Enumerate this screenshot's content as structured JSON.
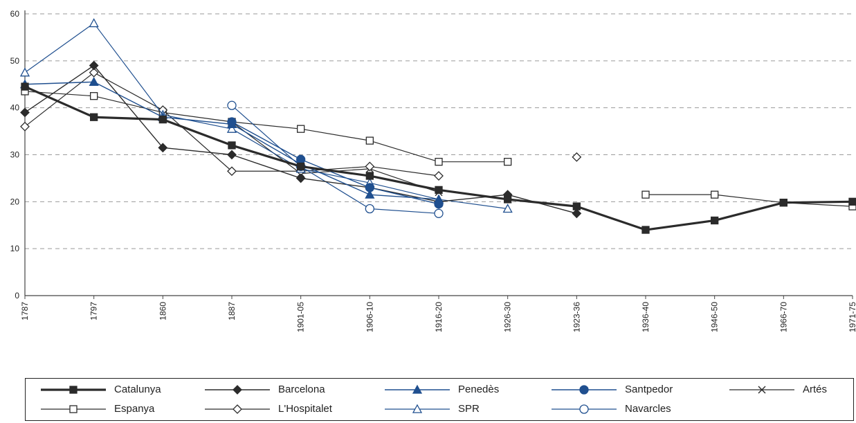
{
  "chart_data": {
    "type": "line",
    "categories": [
      "1787",
      "1797",
      "1860",
      "1887",
      "1901-05",
      "1906-10",
      "1916-20",
      "1926-30",
      "1923-36",
      "1936-40",
      "1946-50",
      "1966-70",
      "1971-75"
    ],
    "ylim": [
      0,
      60
    ],
    "yticks": [
      0,
      10,
      20,
      30,
      40,
      50,
      60
    ],
    "grid": "horizontal dashed",
    "legend_position": "bottom",
    "series": [
      {
        "name": "Catalunya",
        "color": "#2b2b2b",
        "marker": "filled-square",
        "width": 3.2,
        "values": [
          44.5,
          38,
          37.5,
          32,
          27.5,
          25.5,
          22.5,
          20.5,
          19,
          14,
          16,
          19.8,
          20
        ]
      },
      {
        "name": "Barcelona",
        "color": "#2b2b2b",
        "marker": "filled-diamond",
        "width": 1.4,
        "values": [
          39,
          49,
          31.5,
          30,
          25,
          23,
          20,
          21.5,
          17.5,
          null,
          null,
          null,
          null
        ]
      },
      {
        "name": "Penedès",
        "color": "#1f4f8f",
        "marker": "filled-triangle",
        "width": 1.4,
        "values": [
          45,
          45.5,
          38,
          36.5,
          28,
          21.5,
          20.5,
          null,
          null,
          null,
          null,
          null,
          null
        ]
      },
      {
        "name": "Santpedor",
        "color": "#1f4f8f",
        "marker": "filled-circle",
        "width": 1.4,
        "values": [
          null,
          null,
          null,
          37,
          29,
          23,
          19.5,
          null,
          null,
          null,
          null,
          null,
          null
        ]
      },
      {
        "name": "Artés",
        "color": "#2b2b2b",
        "marker": "cross",
        "width": 1.2,
        "values": [
          null,
          null,
          null,
          37,
          26,
          27,
          22,
          null,
          null,
          null,
          null,
          null,
          null
        ]
      },
      {
        "name": "Espanya",
        "color": "#2b2b2b",
        "marker": "open-square",
        "width": 1.2,
        "values": [
          43.5,
          42.5,
          39,
          37,
          35.5,
          33,
          28.5,
          28.5,
          null,
          21.5,
          21.5,
          19.8,
          19
        ]
      },
      {
        "name": "L'Hospitalet",
        "color": "#2b2b2b",
        "marker": "open-diamond",
        "width": 1.2,
        "values": [
          36,
          47.5,
          39.5,
          26.5,
          26.5,
          27.5,
          25.5,
          null,
          29.5,
          null,
          null,
          null,
          null
        ]
      },
      {
        "name": "SPR",
        "color": "#1f4f8f",
        "marker": "open-triangle",
        "width": 1.2,
        "values": [
          47.5,
          58,
          38.5,
          35.5,
          27,
          24,
          20.5,
          18.5,
          null,
          null,
          null,
          null,
          null
        ]
      },
      {
        "name": "Navarcles",
        "color": "#1f4f8f",
        "marker": "open-circle",
        "width": 1.2,
        "values": [
          null,
          null,
          null,
          40.5,
          27.5,
          18.5,
          17.5,
          null,
          null,
          null,
          null,
          null,
          null
        ]
      }
    ]
  }
}
